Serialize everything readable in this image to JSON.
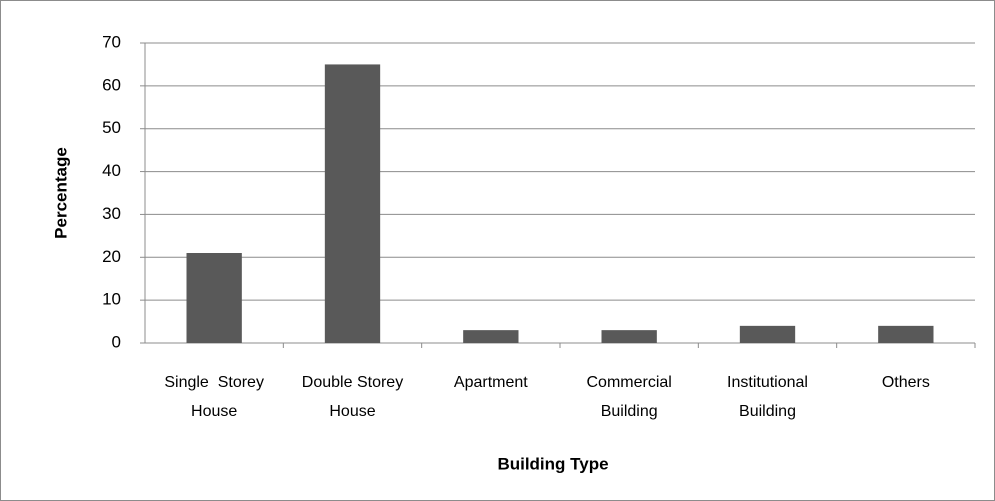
{
  "chart_data": {
    "type": "bar",
    "x_label": "Building Type",
    "y_label": "Percentage",
    "categories": [
      "Single  Storey House",
      "Double Storey House",
      "Apartment",
      "Commercial Building",
      "Institutional Building",
      "Others"
    ],
    "values": [
      21,
      65,
      3,
      3,
      4,
      4
    ],
    "color": "#595959",
    "ylim": [
      0,
      70
    ],
    "yticks": [
      0,
      10,
      20,
      30,
      40,
      50,
      60,
      70
    ],
    "grid": true
  }
}
